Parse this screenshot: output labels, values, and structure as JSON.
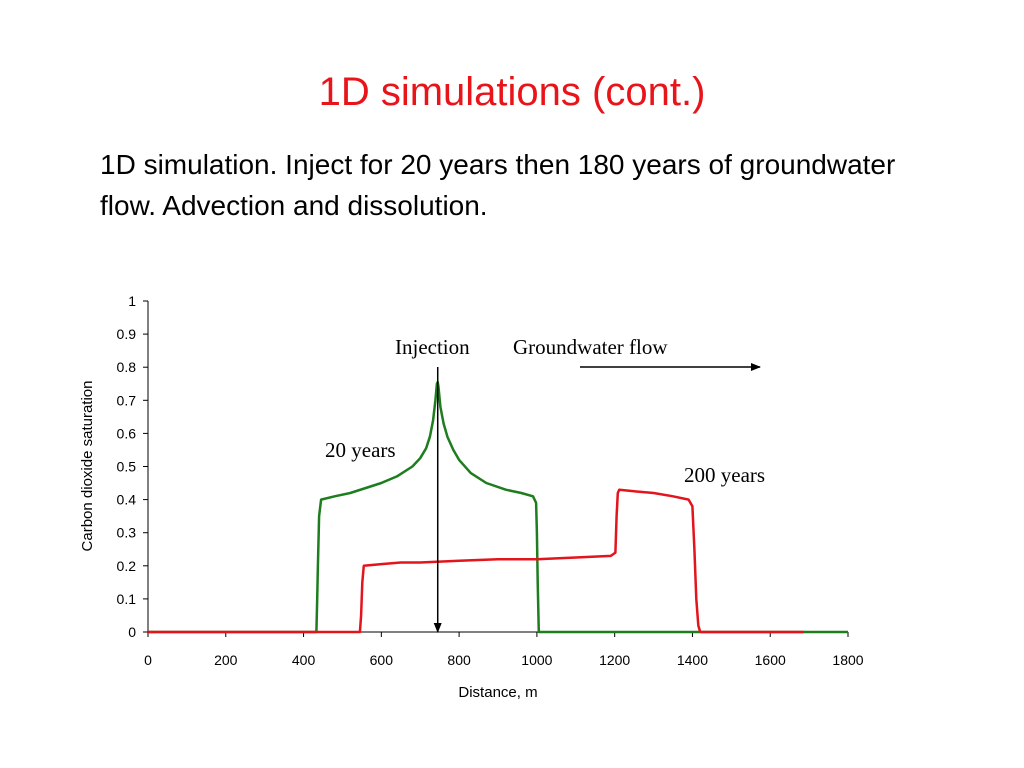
{
  "slide": {
    "title": "1D simulations (cont.)",
    "body": "1D simulation.  Inject for 20 years then 180 years of groundwater flow.  Advection and dissolution."
  },
  "colors": {
    "title": "#e8141a",
    "series_20_years": "#1e7d1e",
    "series_200_years": "#e3141c"
  },
  "chart_data": {
    "type": "line",
    "xlabel": "Distance, m",
    "ylabel": "Carbon dioxide saturation",
    "xlim": [
      0,
      1800
    ],
    "ylim": [
      0,
      1
    ],
    "xticks": [
      0,
      200,
      400,
      600,
      800,
      1000,
      1200,
      1400,
      1600,
      1800
    ],
    "yticks": [
      0,
      0.1,
      0.2,
      0.3,
      0.4,
      0.5,
      0.6,
      0.7,
      0.8,
      0.9,
      1
    ],
    "ytick_labels": [
      "0",
      "0.1",
      "0.2",
      "0.3",
      "0.4",
      "0.5",
      "0.6",
      "0.7",
      "0.8",
      "0.9",
      "1"
    ],
    "grid": false,
    "legend": "none",
    "annotations": {
      "injection": "Injection",
      "flow": "Groundwater flow",
      "label_20": "20 years",
      "label_200": "200 years"
    },
    "injection_x": 745,
    "series": [
      {
        "label_key": "label_20",
        "points": [
          [
            0,
            0
          ],
          [
            433,
            0
          ],
          [
            435,
            0.1
          ],
          [
            437,
            0.2
          ],
          [
            440,
            0.35
          ],
          [
            445,
            0.4
          ],
          [
            480,
            0.41
          ],
          [
            520,
            0.42
          ],
          [
            560,
            0.435
          ],
          [
            600,
            0.45
          ],
          [
            640,
            0.47
          ],
          [
            680,
            0.5
          ],
          [
            700,
            0.525
          ],
          [
            715,
            0.555
          ],
          [
            725,
            0.59
          ],
          [
            733,
            0.64
          ],
          [
            739,
            0.7
          ],
          [
            743,
            0.75
          ],
          [
            745,
            0.755
          ],
          [
            747,
            0.74
          ],
          [
            752,
            0.68
          ],
          [
            760,
            0.63
          ],
          [
            770,
            0.59
          ],
          [
            785,
            0.55
          ],
          [
            800,
            0.52
          ],
          [
            830,
            0.48
          ],
          [
            870,
            0.45
          ],
          [
            920,
            0.43
          ],
          [
            960,
            0.42
          ],
          [
            990,
            0.41
          ],
          [
            998,
            0.39
          ],
          [
            1000,
            0.3
          ],
          [
            1002,
            0.15
          ],
          [
            1005,
            0
          ],
          [
            1800,
            0
          ]
        ]
      },
      {
        "label_key": "label_200",
        "points": [
          [
            0,
            0
          ],
          [
            545,
            0
          ],
          [
            548,
            0.05
          ],
          [
            551,
            0.15
          ],
          [
            555,
            0.2
          ],
          [
            600,
            0.205
          ],
          [
            650,
            0.21
          ],
          [
            700,
            0.21
          ],
          [
            800,
            0.215
          ],
          [
            900,
            0.22
          ],
          [
            1000,
            0.22
          ],
          [
            1100,
            0.225
          ],
          [
            1190,
            0.23
          ],
          [
            1202,
            0.24
          ],
          [
            1205,
            0.35
          ],
          [
            1208,
            0.42
          ],
          [
            1212,
            0.43
          ],
          [
            1250,
            0.425
          ],
          [
            1300,
            0.42
          ],
          [
            1350,
            0.41
          ],
          [
            1390,
            0.4
          ],
          [
            1400,
            0.38
          ],
          [
            1405,
            0.25
          ],
          [
            1410,
            0.1
          ],
          [
            1415,
            0.02
          ],
          [
            1420,
            0
          ],
          [
            1685,
            0
          ]
        ]
      }
    ]
  }
}
